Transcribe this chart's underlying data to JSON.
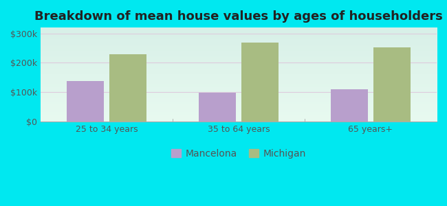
{
  "title": "Breakdown of mean house values by ages of householders",
  "categories": [
    "25 to 34 years",
    "35 to 64 years",
    "65 years+"
  ],
  "mancelona_values": [
    137000,
    97000,
    110000
  ],
  "michigan_values": [
    228000,
    268000,
    253000
  ],
  "mancelona_color": "#b89fcc",
  "michigan_color": "#a8bc82",
  "background_outer": "#00e8f0",
  "background_inner_top": "#e0f5ec",
  "background_inner_bottom": "#c8f0d8",
  "ylim": [
    0,
    320000
  ],
  "yticks": [
    0,
    100000,
    200000,
    300000
  ],
  "ytick_labels": [
    "$0",
    "$100k",
    "$200k",
    "$300k"
  ],
  "legend_labels": [
    "Mancelona",
    "Michigan"
  ],
  "bar_width": 0.28,
  "title_fontsize": 13,
  "tick_fontsize": 9,
  "legend_fontsize": 10,
  "grid_color": "#ddccdd",
  "tick_color": "#555555"
}
